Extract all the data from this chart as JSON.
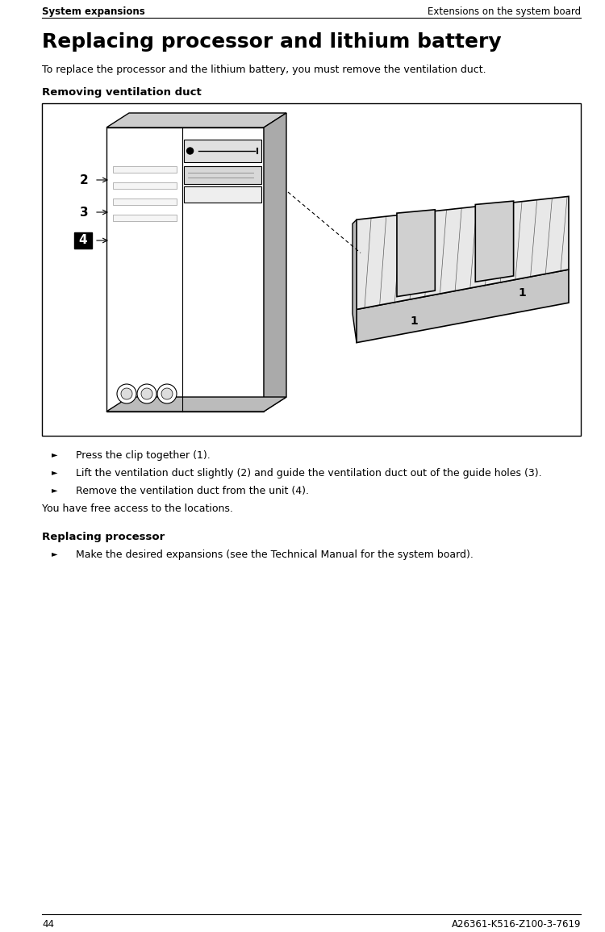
{
  "header_left": "System expansions",
  "header_right": "Extensions on the system board",
  "page_number": "44",
  "footer_right": "A26361-K516-Z100-3-7619",
  "main_title": "Replacing processor and lithium battery",
  "intro_text": "To replace the processor and the lithium battery, you must remove the ventilation duct.",
  "section1_title": "Removing ventilation duct",
  "section2_title": "Replacing processor",
  "bullet_points": [
    "Press the clip together (1).",
    "Lift the ventilation duct slightly (2) and guide the ventilation duct out of the guide holes (3).",
    "Remove the ventilation duct from the unit (4)."
  ],
  "free_access_text": "You have free access to the locations.",
  "replace_bullet": "Make the desired expansions (see the Technical Manual for the system board).",
  "bg_color": "#ffffff",
  "text_color": "#000000",
  "header_fontsize": 8.5,
  "main_title_fontsize": 18,
  "section_title_fontsize": 9.5,
  "body_fontsize": 9,
  "fig_width": 7.5,
  "fig_height": 11.55
}
